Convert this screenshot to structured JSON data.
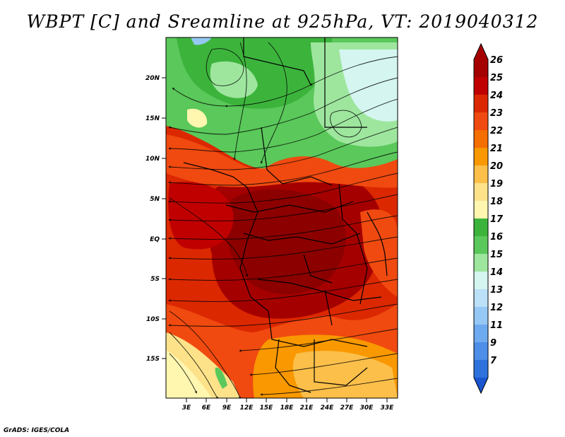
{
  "title": "WBPT [C] and Sreamline at 925hPa, VT: 2019040312",
  "credit": "GrADS: IGES/COLA",
  "map": {
    "lat_labels": [
      "20N",
      "15N",
      "10N",
      "5N",
      "EQ",
      "5S",
      "10S",
      "15S"
    ],
    "lat_values": [
      20,
      15,
      10,
      5,
      0,
      -5,
      -10,
      -15
    ],
    "lon_labels": [
      "3E",
      "6E",
      "9E",
      "12E",
      "15E",
      "18E",
      "21E",
      "24E",
      "27E",
      "30E",
      "33E"
    ],
    "lon_values": [
      3,
      6,
      9,
      12,
      15,
      18,
      21,
      24,
      27,
      30,
      33
    ],
    "lat_range": [
      -20,
      24.5
    ],
    "lon_range": [
      0.5,
      35
    ],
    "field": "Wet-bulb potential temperature",
    "units": "C",
    "level": "925hPa",
    "valid_time": "2019040312"
  },
  "colorbar": {
    "labels": [
      "26",
      "25",
      "24",
      "23",
      "22",
      "21",
      "20",
      "19",
      "18",
      "17",
      "16",
      "15",
      "14",
      "13",
      "12",
      "11",
      "9",
      "7"
    ],
    "colors": [
      "#a50000",
      "#c00000",
      "#dc2800",
      "#f04a10",
      "#f56e00",
      "#f99800",
      "#fbbf4a",
      "#fde28a",
      "#fff6b0",
      "#3cb43c",
      "#5ac85a",
      "#9ee69e",
      "#d4f5f0",
      "#bbe0f8",
      "#96c8f5",
      "#6eaaf0",
      "#4d8ee8",
      "#2d72dc",
      "#1a55d0"
    ]
  }
}
